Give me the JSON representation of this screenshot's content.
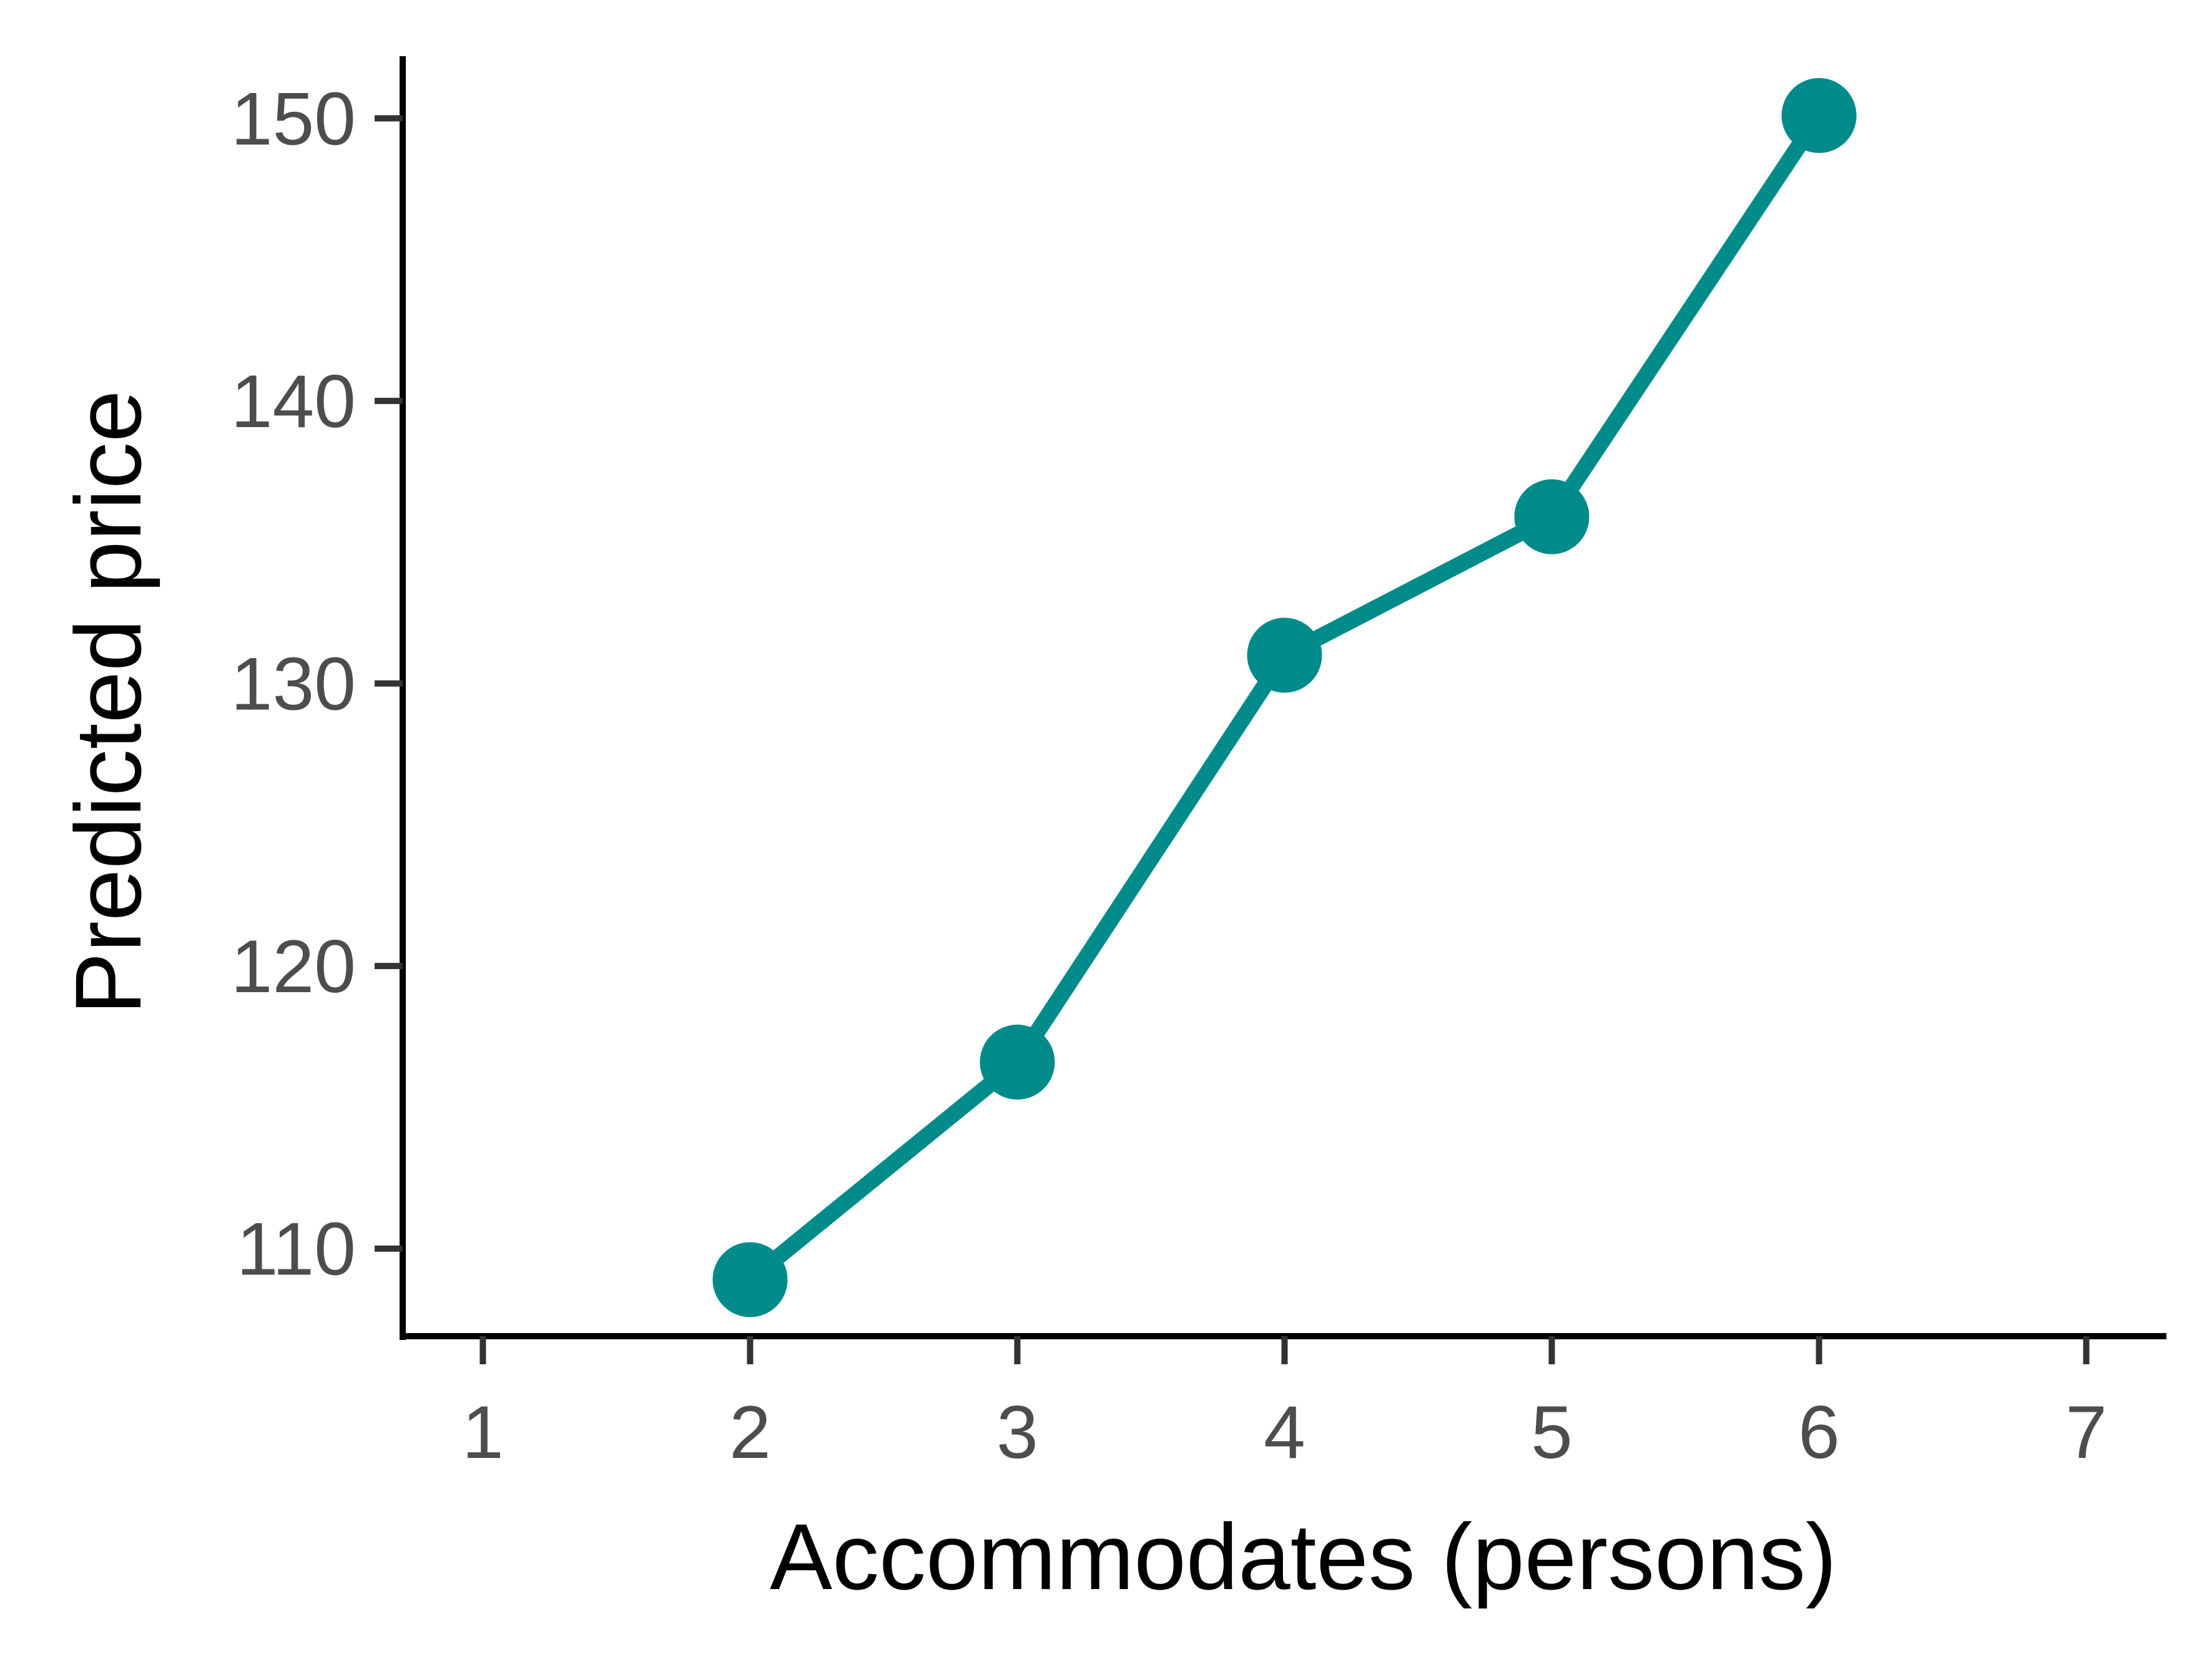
{
  "chart_data": {
    "type": "line",
    "title": "",
    "xlabel": "Accommodates (persons)",
    "ylabel": "Predicted price",
    "x": [
      2,
      3,
      4,
      5,
      6
    ],
    "series": [
      {
        "values": [
          108.9,
          116.6,
          131.0,
          135.9,
          150.1
        ]
      }
    ],
    "xticks": [
      1,
      2,
      3,
      4,
      5,
      6,
      7
    ],
    "yticks": [
      110,
      120,
      130,
      140,
      150
    ],
    "xlim": [
      0.7,
      7.3
    ],
    "ylim": [
      106.9,
      152.2
    ],
    "grid": false,
    "legend": "none",
    "colors": {
      "series": "#008B8B",
      "axis": "#000000",
      "tick": "#333333",
      "tick_label": "#4d4d4d"
    }
  }
}
